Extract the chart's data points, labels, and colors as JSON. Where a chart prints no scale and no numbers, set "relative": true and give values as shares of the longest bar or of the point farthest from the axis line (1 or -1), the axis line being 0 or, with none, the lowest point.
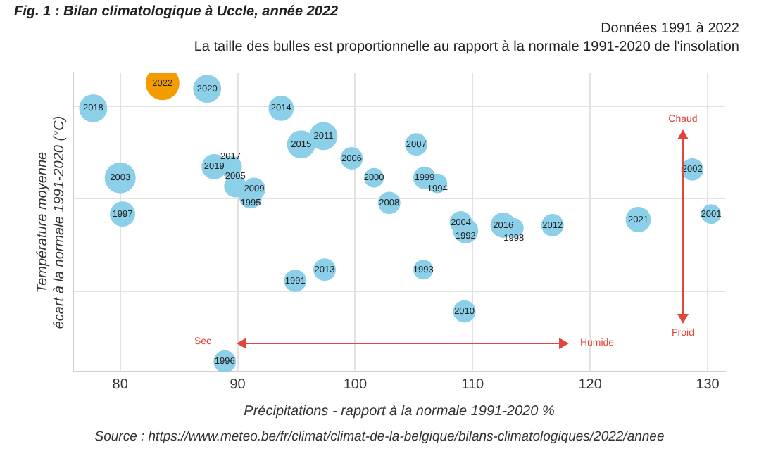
{
  "chart_data": {
    "type": "bubble",
    "title": "Fig. 1 : Bilan climatologique à Uccle, année 2022",
    "subtitle": "Données 1991 à 2022\nLa taille des bulles est proportionnelle au rapport à la normale 1991-2020 de l'insolation",
    "xlabel": "Précipitations - rapport à la normale 1991-2020 %",
    "ylabel": "Température moyenne\nécart à la normale 1991-2020 (°C)",
    "relative": true,
    "grid": true,
    "xlim": [
      76,
      131.5
    ],
    "xticks": [
      80,
      90,
      100,
      110,
      120,
      130
    ],
    "x": [
      77.7,
      83.6,
      87.4,
      93.7,
      80.0,
      88.0,
      89.4,
      95.4,
      97.3,
      99.7,
      105.2,
      91.4,
      89.8,
      91.1,
      101.6,
      105.9,
      107.0,
      80.2,
      102.9,
      109.0,
      109.4,
      112.6,
      113.5,
      116.8,
      124.1,
      128.7,
      130.3,
      94.9,
      97.4,
      105.8,
      109.3,
      88.9
    ],
    "values": [
      0.91,
      1,
      0.98,
      0.91,
      0.66,
      0.7,
      0.7,
      0.78,
      0.81,
      0.73,
      0.78,
      0.62,
      0.63,
      0.59,
      0.66,
      0.66,
      0.64,
      0.53,
      0.57,
      0.5,
      0.47,
      0.49,
      0.48,
      0.49,
      0.51,
      0.69,
      0.53,
      0.29,
      0.33,
      0.33,
      0.18,
      0
    ],
    "sizes": [
      0.69,
      1,
      0.69,
      0.56,
      0.84,
      0.56,
      0.44,
      0.69,
      0.69,
      0.44,
      0.44,
      0.44,
      0.44,
      0.44,
      0.34,
      0.44,
      0.34,
      0.56,
      0.44,
      0.44,
      0.56,
      0.56,
      0.34,
      0.44,
      0.56,
      0.44,
      0.34,
      0.44,
      0.44,
      0.34,
      0.44,
      0.44
    ],
    "colors": [
      "#8ccfe9",
      "#f39c00",
      "#8ccfe9",
      "#8ccfe9",
      "#8ccfe9",
      "#8ccfe9",
      "#8ccfe9",
      "#8ccfe9",
      "#8ccfe9",
      "#8ccfe9",
      "#8ccfe9",
      "#8ccfe9",
      "#8ccfe9",
      "#8ccfe9",
      "#8ccfe9",
      "#8ccfe9",
      "#8ccfe9",
      "#8ccfe9",
      "#8ccfe9",
      "#8ccfe9",
      "#8ccfe9",
      "#8ccfe9",
      "#8ccfe9",
      "#8ccfe9",
      "#8ccfe9",
      "#8ccfe9",
      "#8ccfe9",
      "#8ccfe9",
      "#8ccfe9",
      "#8ccfe9",
      "#8ccfe9",
      "#8ccfe9"
    ],
    "annotations": [
      "Chaud",
      "Froid",
      "Sec",
      "Humide",
      "Source : https://www.meteo.be/fr/climat/climat-de-la-belgique/bilans-climatologiques/2022/annee",
      {
        "text": "2018",
        "x": 77.7,
        "y": 0.91
      },
      {
        "text": "2022",
        "x": 83.6,
        "y": 1
      },
      {
        "text": "2020",
        "x": 87.4,
        "y": 0.98
      },
      {
        "text": "2014",
        "x": 93.7,
        "y": 0.91
      },
      {
        "text": "2003",
        "x": 80.0,
        "y": 0.66
      },
      {
        "text": "2019",
        "x": 88.0,
        "y": 0.7
      },
      {
        "text": "2017",
        "x": 89.4,
        "y": 0.7
      },
      {
        "text": "2015",
        "x": 95.4,
        "y": 0.78
      },
      {
        "text": "2011",
        "x": 97.3,
        "y": 0.81
      },
      {
        "text": "2006",
        "x": 99.7,
        "y": 0.73
      },
      {
        "text": "2007",
        "x": 105.2,
        "y": 0.78
      },
      {
        "text": "2009",
        "x": 91.4,
        "y": 0.62
      },
      {
        "text": "2005",
        "x": 89.8,
        "y": 0.63
      },
      {
        "text": "1995",
        "x": 91.1,
        "y": 0.59
      },
      {
        "text": "2000",
        "x": 101.6,
        "y": 0.66
      },
      {
        "text": "1999",
        "x": 105.9,
        "y": 0.66
      },
      {
        "text": "1994",
        "x": 107.0,
        "y": 0.64
      },
      {
        "text": "1997",
        "x": 80.2,
        "y": 0.53
      },
      {
        "text": "2008",
        "x": 102.9,
        "y": 0.57
      },
      {
        "text": "2004",
        "x": 109.0,
        "y": 0.5
      },
      {
        "text": "1992",
        "x": 109.4,
        "y": 0.47
      },
      {
        "text": "2016",
        "x": 112.6,
        "y": 0.49
      },
      {
        "text": "1998",
        "x": 113.5,
        "y": 0.48
      },
      {
        "text": "2012",
        "x": 116.8,
        "y": 0.49
      },
      {
        "text": "2021",
        "x": 124.1,
        "y": 0.51
      },
      {
        "text": "2002",
        "x": 128.7,
        "y": 0.69
      },
      {
        "text": "2001",
        "x": 130.3,
        "y": 0.53
      },
      {
        "text": "1991",
        "x": 94.9,
        "y": 0.29
      },
      {
        "text": "2013",
        "x": 97.4,
        "y": 0.33
      },
      {
        "text": "1993",
        "x": 105.8,
        "y": 0.33
      },
      {
        "text": "2010",
        "x": 109.3,
        "y": 0.18
      },
      {
        "text": "1996",
        "x": 88.9,
        "y": 0
      }
    ]
  }
}
